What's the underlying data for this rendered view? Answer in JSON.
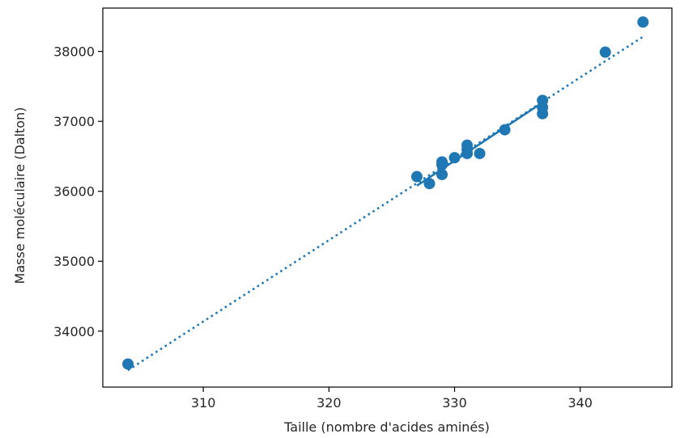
{
  "chart_data": {
    "type": "scatter",
    "title": "",
    "xlabel": "Taille (nombre d'acides aminés)",
    "ylabel": "Masse moléculaire (Dalton)",
    "xlim": [
      302.0,
      347.3
    ],
    "ylim": [
      33200,
      38620
    ],
    "xticks": [
      310,
      320,
      330,
      340
    ],
    "yticks": [
      34000,
      35000,
      36000,
      37000,
      38000
    ],
    "grid": false,
    "color": "#1f77b4",
    "points": [
      {
        "x": 304,
        "y": 33530
      },
      {
        "x": 327,
        "y": 36210
      },
      {
        "x": 328,
        "y": 36110
      },
      {
        "x": 329,
        "y": 36240
      },
      {
        "x": 329,
        "y": 36380
      },
      {
        "x": 329,
        "y": 36420
      },
      {
        "x": 330,
        "y": 36480
      },
      {
        "x": 331,
        "y": 36540
      },
      {
        "x": 331,
        "y": 36600
      },
      {
        "x": 331,
        "y": 36660
      },
      {
        "x": 332,
        "y": 36540
      },
      {
        "x": 334,
        "y": 36880
      },
      {
        "x": 337,
        "y": 37110
      },
      {
        "x": 337,
        "y": 37200
      },
      {
        "x": 337,
        "y": 37300
      },
      {
        "x": 342,
        "y": 37990
      },
      {
        "x": 345,
        "y": 38420
      }
    ],
    "fit_solid": {
      "x": [
        327,
        337
      ],
      "y": [
        36080,
        37270
      ]
    },
    "fit_dotted": {
      "x": [
        304,
        345
      ],
      "y": [
        33440,
        38210
      ]
    }
  }
}
